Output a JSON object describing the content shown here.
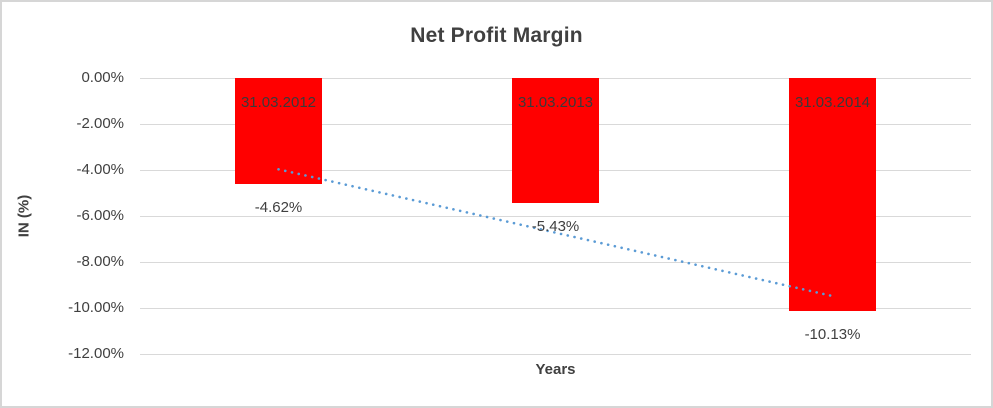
{
  "window": {
    "background_color": "#FFFFFF",
    "border_color": "#D6D6D6"
  },
  "chart_data": {
    "type": "bar",
    "title": "Net Profit Margin",
    "xlabel": "Years",
    "ylabel": "IN (%)",
    "categories": [
      "31.03.2012",
      "31.03.2013",
      "31.03.2014"
    ],
    "values": [
      -4.62,
      -5.43,
      -10.13
    ],
    "data_labels": [
      "-4.62%",
      "-5.43%",
      "-10.13%"
    ],
    "y_ticks": [
      "0.00%",
      "-2.00%",
      "-4.00%",
      "-6.00%",
      "-8.00%",
      "-10.00%",
      "-12.00%"
    ],
    "y_tick_values": [
      0,
      -2,
      -4,
      -6,
      -8,
      -10,
      -12
    ],
    "ylim": [
      -12,
      0
    ],
    "grid": true,
    "legend": false,
    "bar_color": "#FF0000",
    "category_label_color": "#3A3A3A",
    "data_label_color": "#404040",
    "gridline_color": "#D9D9D9",
    "title_color": "#404040",
    "trendline": {
      "type": "linear",
      "style": "dotted",
      "color": "#5B9BD5",
      "start_value": -3.97,
      "end_value": -9.48
    }
  }
}
